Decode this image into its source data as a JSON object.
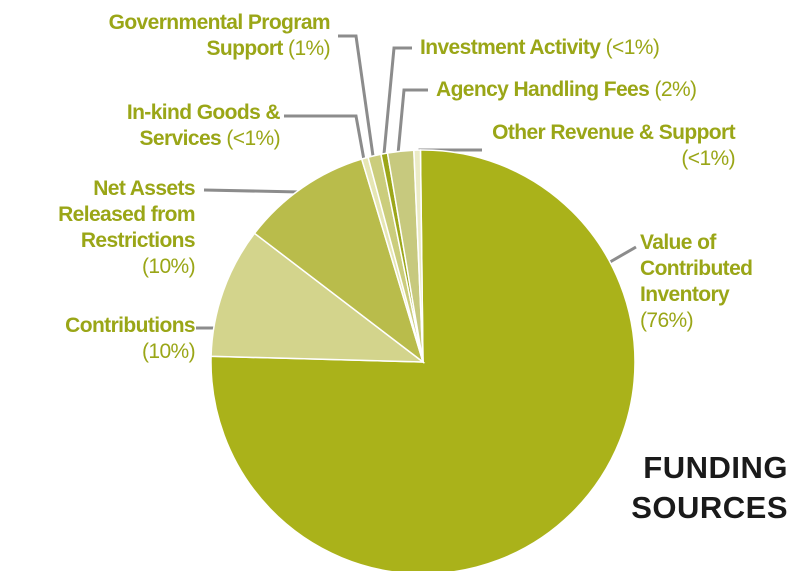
{
  "chart_data": {
    "type": "pie",
    "title": "FUNDING SOURCES",
    "categories": [
      "Value of Contributed Inventory",
      "Contributions",
      "Net Assets Released from Restrictions",
      "In-kind Goods & Services",
      "Governmental Program Support",
      "Investment Activity",
      "Agency Handling Fees",
      "Other Revenue & Support"
    ],
    "values": [
      76,
      10,
      10,
      0.5,
      1,
      0.5,
      2,
      0.5
    ],
    "value_labels": [
      "(76%)",
      "(10%)",
      "(10%)",
      "(<1%)",
      "(1%)",
      "(<1%)",
      "(2%)",
      "(<1%)"
    ],
    "colors": [
      "#aab21a",
      "#d3d48c",
      "#b9bc4b",
      "#e6e6b4",
      "#cbcd7c",
      "#9ca619",
      "#c7c97e",
      "#ebebc6"
    ]
  }
}
